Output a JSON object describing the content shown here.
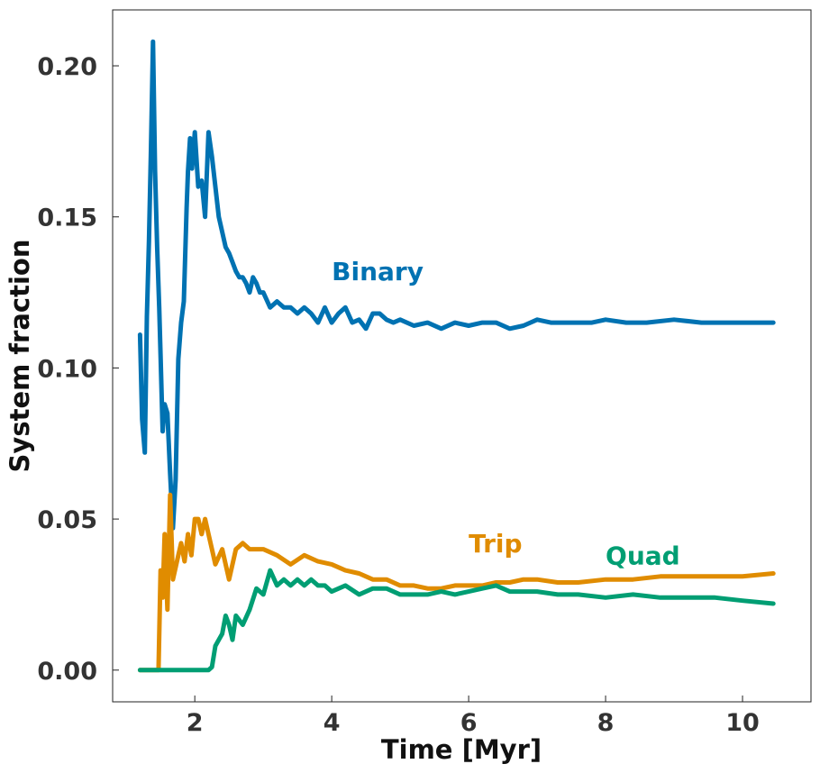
{
  "chart_data": {
    "type": "line",
    "title": "",
    "xlabel": "Time [Myr]",
    "ylabel": "System fraction",
    "xlim": [
      0.8,
      11.0
    ],
    "ylim": [
      -0.0105,
      0.2185
    ],
    "xticks": [
      2,
      4,
      6,
      8,
      10
    ],
    "xtick_labels": [
      "2",
      "4",
      "6",
      "8",
      "10"
    ],
    "yticks": [
      0.0,
      0.05,
      0.1,
      0.15,
      0.2
    ],
    "ytick_labels": [
      "0.00",
      "0.05",
      "0.10",
      "0.15",
      "0.20"
    ],
    "grid": false,
    "series": [
      {
        "name": "Binary",
        "color": "#0072B2",
        "label_at": [
          4.0,
          0.129
        ],
        "x": [
          1.2,
          1.23,
          1.27,
          1.3,
          1.33,
          1.36,
          1.39,
          1.42,
          1.45,
          1.48,
          1.5,
          1.53,
          1.56,
          1.6,
          1.64,
          1.68,
          1.72,
          1.76,
          1.8,
          1.84,
          1.88,
          1.9,
          1.93,
          1.96,
          2.0,
          2.05,
          2.1,
          2.15,
          2.2,
          2.25,
          2.3,
          2.35,
          2.4,
          2.45,
          2.5,
          2.55,
          2.6,
          2.65,
          2.7,
          2.75,
          2.8,
          2.85,
          2.9,
          2.95,
          3.0,
          3.1,
          3.2,
          3.3,
          3.4,
          3.5,
          3.6,
          3.7,
          3.8,
          3.9,
          4.0,
          4.1,
          4.2,
          4.3,
          4.4,
          4.5,
          4.6,
          4.7,
          4.8,
          4.9,
          5.0,
          5.2,
          5.4,
          5.6,
          5.8,
          6.0,
          6.2,
          6.4,
          6.6,
          6.8,
          7.0,
          7.2,
          7.4,
          7.6,
          7.8,
          8.0,
          8.3,
          8.6,
          9.0,
          9.4,
          9.8,
          10.2,
          10.45
        ],
        "y": [
          0.111,
          0.083,
          0.072,
          0.117,
          0.142,
          0.172,
          0.208,
          0.165,
          0.14,
          0.12,
          0.104,
          0.079,
          0.088,
          0.085,
          0.065,
          0.047,
          0.063,
          0.103,
          0.115,
          0.122,
          0.153,
          0.165,
          0.176,
          0.166,
          0.178,
          0.16,
          0.162,
          0.15,
          0.178,
          0.17,
          0.16,
          0.15,
          0.145,
          0.14,
          0.138,
          0.135,
          0.132,
          0.13,
          0.13,
          0.128,
          0.125,
          0.13,
          0.128,
          0.125,
          0.125,
          0.12,
          0.122,
          0.12,
          0.12,
          0.118,
          0.12,
          0.118,
          0.115,
          0.12,
          0.115,
          0.118,
          0.12,
          0.115,
          0.116,
          0.113,
          0.118,
          0.118,
          0.116,
          0.115,
          0.116,
          0.114,
          0.115,
          0.113,
          0.115,
          0.114,
          0.115,
          0.115,
          0.113,
          0.114,
          0.116,
          0.115,
          0.115,
          0.115,
          0.115,
          0.116,
          0.115,
          0.115,
          0.116,
          0.115,
          0.115,
          0.115,
          0.115
        ]
      },
      {
        "name": "Trip",
        "color": "#E08C00",
        "label_at": [
          6.0,
          0.039
        ],
        "x": [
          1.2,
          1.3,
          1.4,
          1.47,
          1.5,
          1.53,
          1.56,
          1.6,
          1.64,
          1.68,
          1.72,
          1.76,
          1.8,
          1.85,
          1.9,
          1.95,
          2.0,
          2.05,
          2.1,
          2.15,
          2.2,
          2.25,
          2.3,
          2.4,
          2.5,
          2.6,
          2.7,
          2.8,
          2.9,
          3.0,
          3.2,
          3.4,
          3.6,
          3.8,
          4.0,
          4.2,
          4.4,
          4.6,
          4.8,
          5.0,
          5.2,
          5.4,
          5.6,
          5.8,
          6.0,
          6.2,
          6.4,
          6.6,
          6.8,
          7.0,
          7.3,
          7.6,
          8.0,
          8.4,
          8.8,
          9.2,
          9.6,
          10.0,
          10.45
        ],
        "y": [
          0.0,
          0.0,
          0.0,
          0.0,
          0.033,
          0.024,
          0.045,
          0.02,
          0.058,
          0.03,
          0.034,
          0.038,
          0.042,
          0.036,
          0.045,
          0.038,
          0.05,
          0.05,
          0.045,
          0.05,
          0.045,
          0.04,
          0.035,
          0.04,
          0.03,
          0.04,
          0.042,
          0.04,
          0.04,
          0.04,
          0.038,
          0.035,
          0.038,
          0.036,
          0.035,
          0.033,
          0.032,
          0.03,
          0.03,
          0.028,
          0.028,
          0.027,
          0.027,
          0.028,
          0.028,
          0.028,
          0.029,
          0.029,
          0.03,
          0.03,
          0.029,
          0.029,
          0.03,
          0.03,
          0.031,
          0.031,
          0.031,
          0.031,
          0.032
        ]
      },
      {
        "name": "Quad",
        "color": "#009E73",
        "label_at": [
          8.0,
          0.035
        ],
        "x": [
          1.2,
          1.5,
          1.8,
          2.0,
          2.1,
          2.2,
          2.25,
          2.3,
          2.35,
          2.4,
          2.45,
          2.5,
          2.55,
          2.6,
          2.7,
          2.8,
          2.9,
          3.0,
          3.1,
          3.2,
          3.3,
          3.4,
          3.5,
          3.6,
          3.7,
          3.8,
          3.9,
          4.0,
          4.2,
          4.4,
          4.6,
          4.8,
          5.0,
          5.2,
          5.4,
          5.6,
          5.8,
          6.0,
          6.2,
          6.4,
          6.6,
          6.8,
          7.0,
          7.3,
          7.6,
          8.0,
          8.4,
          8.8,
          9.2,
          9.6,
          10.0,
          10.45
        ],
        "y": [
          0.0,
          0.0,
          0.0,
          0.0,
          0.0,
          0.0,
          0.001,
          0.008,
          0.01,
          0.012,
          0.018,
          0.015,
          0.01,
          0.018,
          0.015,
          0.02,
          0.027,
          0.025,
          0.033,
          0.028,
          0.03,
          0.028,
          0.03,
          0.028,
          0.03,
          0.028,
          0.028,
          0.026,
          0.028,
          0.025,
          0.027,
          0.027,
          0.025,
          0.025,
          0.025,
          0.026,
          0.025,
          0.026,
          0.027,
          0.028,
          0.026,
          0.026,
          0.026,
          0.025,
          0.025,
          0.024,
          0.025,
          0.024,
          0.024,
          0.024,
          0.023,
          0.022
        ]
      }
    ]
  }
}
